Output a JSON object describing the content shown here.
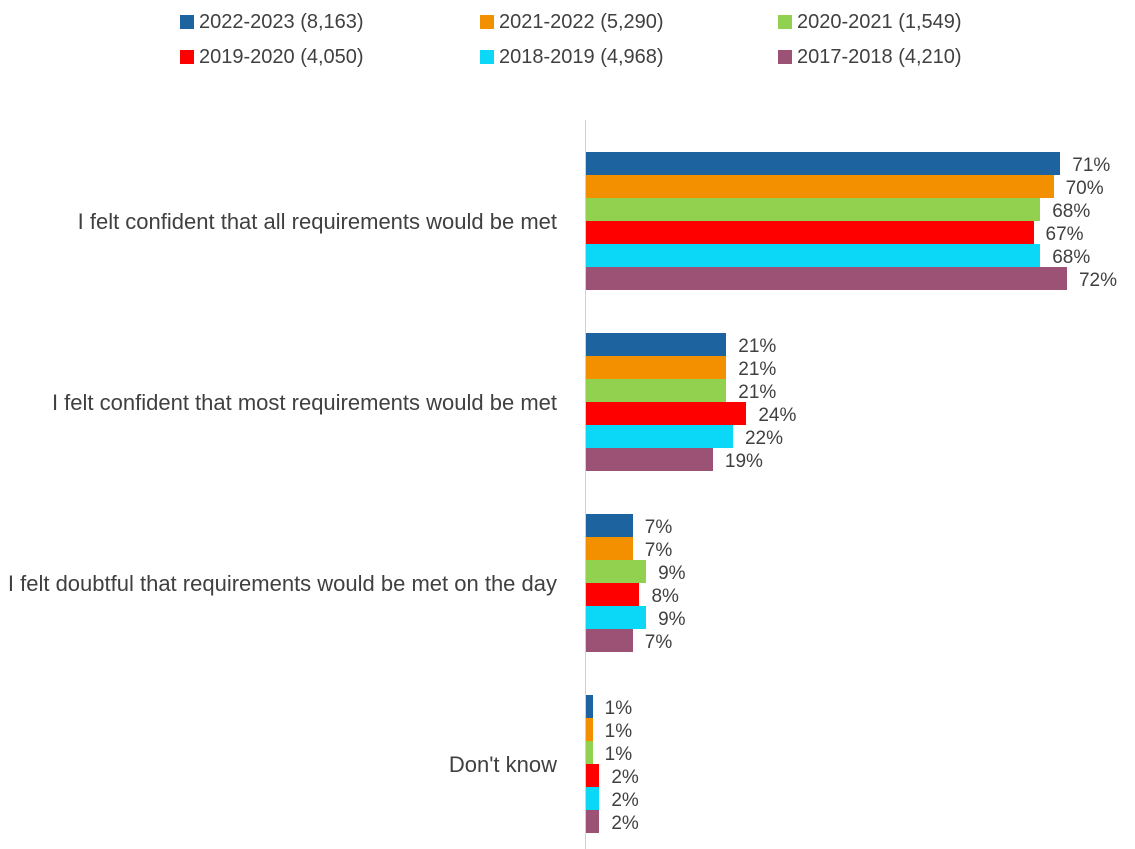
{
  "chart_data": {
    "type": "bar",
    "orientation": "horizontal",
    "categories": [
      "I felt confident that all requirements would be met",
      "I felt confident that most requirements would be met",
      "I felt doubtful that requirements would be met on the day",
      "Don't know"
    ],
    "series": [
      {
        "name": "2022-2023 (8,163)",
        "color": "#1c63a0",
        "values": [
          71,
          21,
          7,
          1
        ],
        "value_labels": [
          "71%",
          "21%",
          "7%",
          "1%"
        ]
      },
      {
        "name": "2021-2022 (5,290)",
        "color": "#f39000",
        "values": [
          70,
          21,
          7,
          1
        ],
        "value_labels": [
          "70%",
          "21%",
          "7%",
          "1%"
        ]
      },
      {
        "name": "2020-2021 (1,549)",
        "color": "#92d050",
        "values": [
          68,
          21,
          9,
          1
        ],
        "value_labels": [
          "68%",
          "21%",
          "9%",
          "1%"
        ]
      },
      {
        "name": "2019-2020 (4,050)",
        "color": "#ff0000",
        "values": [
          67,
          24,
          8,
          2
        ],
        "value_labels": [
          "67%",
          "24%",
          "8%",
          "2%"
        ]
      },
      {
        "name": "2018-2019 (4,968)",
        "color": "#0ad8f6",
        "values": [
          68,
          22,
          9,
          2
        ],
        "value_labels": [
          "68%",
          "22%",
          "9%",
          "2%"
        ]
      },
      {
        "name": "2017-2018 (4,210)",
        "color": "#9b5274",
        "values": [
          72,
          19,
          7,
          2
        ],
        "value_labels": [
          "72%",
          "19%",
          "7%",
          "2%"
        ]
      }
    ],
    "legend": "top"
  }
}
